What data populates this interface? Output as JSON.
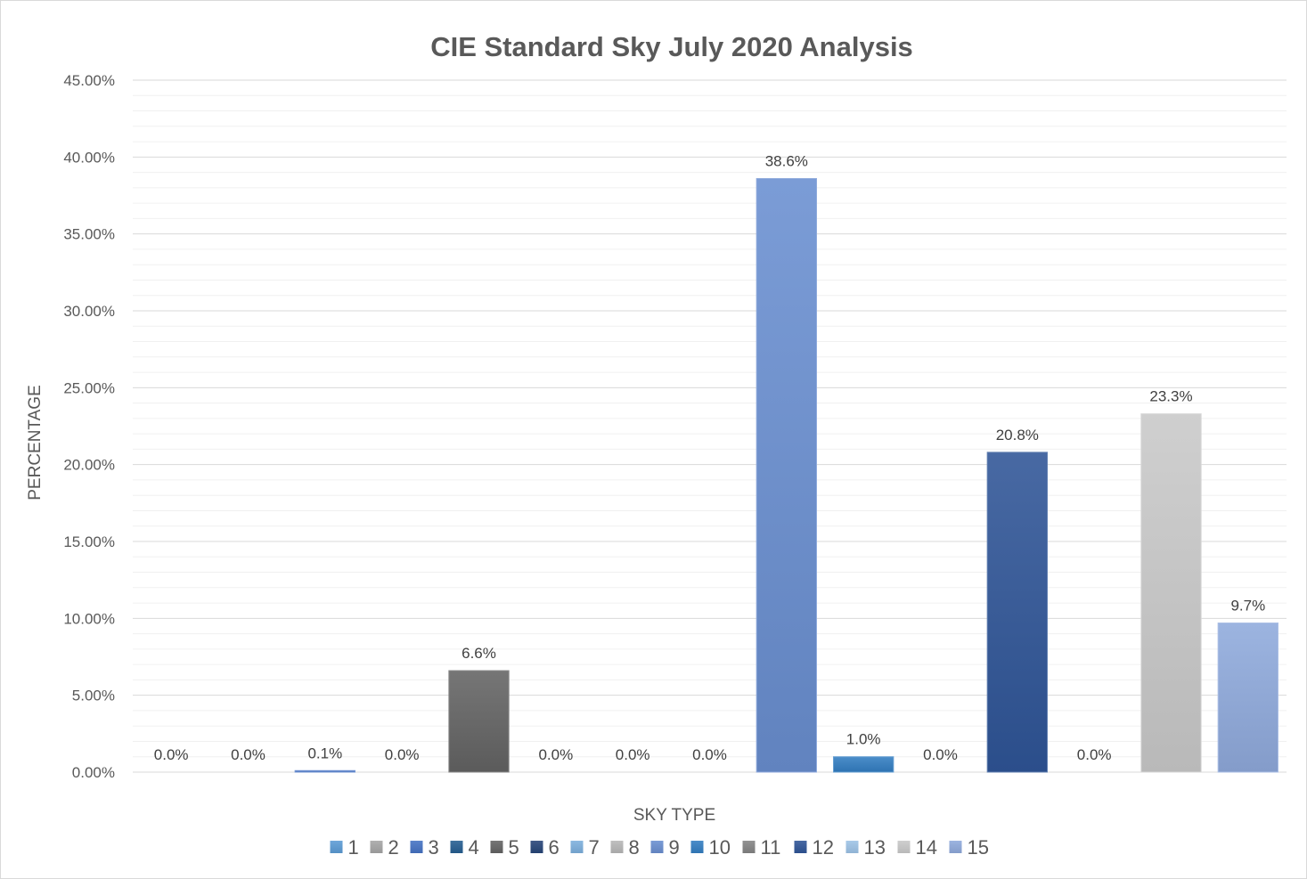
{
  "chart_data": {
    "type": "bar",
    "title": "CIE Standard Sky July 2020 Analysis",
    "xlabel": "SKY TYPE",
    "ylabel": "PERCENTAGE",
    "ylim": [
      0,
      45
    ],
    "y_ticks": [
      "0.00%",
      "5.00%",
      "10.00%",
      "15.00%",
      "20.00%",
      "25.00%",
      "30.00%",
      "35.00%",
      "40.00%",
      "45.00%"
    ],
    "grid": true,
    "legend_position": "bottom",
    "series": [
      {
        "name": "1",
        "value": 0.0,
        "label": "0.0%",
        "color": "#5b9bd5"
      },
      {
        "name": "2",
        "value": 0.0,
        "label": "0.0%",
        "color": "#a5a5a5"
      },
      {
        "name": "3",
        "value": 0.1,
        "label": "0.1%",
        "color": "#4472c4"
      },
      {
        "name": "4",
        "value": 0.0,
        "label": "0.0%",
        "color": "#255e91"
      },
      {
        "name": "5",
        "value": 6.6,
        "label": "6.6%",
        "color": "#636363"
      },
      {
        "name": "6",
        "value": 0.0,
        "label": "0.0%",
        "color": "#264478"
      },
      {
        "name": "7",
        "value": 0.0,
        "label": "0.0%",
        "color": "#7cafdd"
      },
      {
        "name": "8",
        "value": 0.0,
        "label": "0.0%",
        "color": "#b7b7b7"
      },
      {
        "name": "9",
        "value": 38.6,
        "label": "38.6%",
        "color": "#698ed0"
      },
      {
        "name": "10",
        "value": 1.0,
        "label": "1.0%",
        "color": "#327dc2"
      },
      {
        "name": "11",
        "value": 0.0,
        "label": "0.0%",
        "color": "#848484"
      },
      {
        "name": "12",
        "value": 20.8,
        "label": "20.8%",
        "color": "#2f5597"
      },
      {
        "name": "13",
        "value": 0.0,
        "label": "0.0%",
        "color": "#9dc3e6"
      },
      {
        "name": "14",
        "value": 23.3,
        "label": "23.3%",
        "color": "#c9c9c9"
      },
      {
        "name": "15",
        "value": 9.7,
        "label": "9.7%",
        "color": "#8faadc"
      }
    ]
  }
}
